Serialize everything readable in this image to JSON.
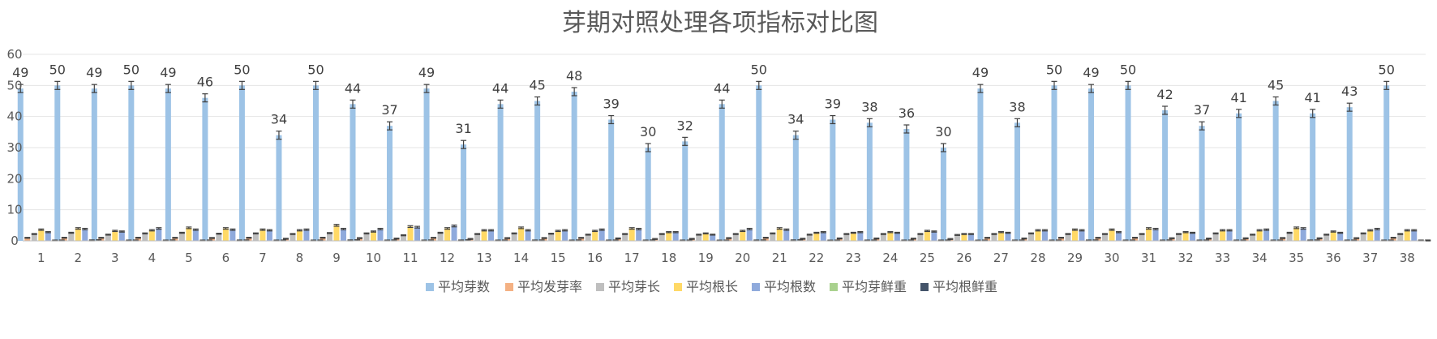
{
  "chart_data": {
    "type": "bar",
    "title": "芽期对照处理各项指标对比图",
    "xlabel": "",
    "ylabel": "",
    "ylim": [
      0,
      60
    ],
    "yticks": [
      0,
      10,
      20,
      30,
      40,
      50,
      60
    ],
    "grid": true,
    "legend_position": "bottom",
    "categories": [
      "1",
      "2",
      "3",
      "4",
      "5",
      "6",
      "7",
      "8",
      "9",
      "10",
      "11",
      "12",
      "13",
      "14",
      "15",
      "16",
      "17",
      "18",
      "19",
      "20",
      "21",
      "22",
      "23",
      "24",
      "25",
      "26",
      "27",
      "28",
      "29",
      "30",
      "31",
      "32",
      "33",
      "34",
      "35",
      "36",
      "37",
      "38"
    ],
    "series": [
      {
        "name": "平均芽数",
        "color": "#9DC3E6",
        "show_labels": true,
        "values": [
          49,
          50,
          49,
          50,
          49,
          46,
          50,
          34,
          50,
          44,
          37,
          49,
          31,
          44,
          45,
          48,
          39,
          30,
          32,
          44,
          50,
          34,
          39,
          38,
          36,
          30,
          49,
          38,
          50,
          49,
          50,
          42,
          37,
          41,
          45,
          41,
          43,
          50
        ]
      },
      {
        "name": "平均发芽率",
        "color": "#F4B183",
        "show_labels": false,
        "values": [
          0.98,
          1.0,
          0.98,
          1.0,
          0.98,
          0.92,
          1.0,
          0.68,
          1.0,
          0.88,
          0.74,
          0.98,
          0.62,
          0.88,
          0.9,
          0.96,
          0.78,
          0.6,
          0.64,
          0.88,
          1.0,
          0.68,
          0.78,
          0.76,
          0.72,
          0.6,
          0.98,
          0.76,
          1.0,
          0.98,
          1.0,
          0.84,
          0.74,
          0.82,
          0.9,
          0.82,
          0.86,
          1.0
        ]
      },
      {
        "name": "平均芽长",
        "color": "#BFBFBF",
        "show_labels": false,
        "values": [
          2.2,
          2.6,
          2.0,
          2.4,
          2.6,
          2.3,
          2.4,
          2.2,
          2.5,
          2.4,
          1.8,
          2.6,
          2.2,
          2.4,
          2.3,
          2.0,
          2.2,
          2.2,
          2.0,
          2.2,
          2.4,
          2.0,
          2.2,
          2.2,
          2.2,
          1.9,
          2.2,
          2.4,
          2.2,
          2.2,
          2.2,
          2.2,
          2.4,
          2.0,
          2.6,
          2.0,
          2.4,
          2.2
        ]
      },
      {
        "name": "平均根长",
        "color": "#FFD966",
        "show_labels": false,
        "values": [
          3.6,
          4.0,
          3.2,
          3.4,
          4.2,
          4.0,
          3.6,
          3.4,
          5.0,
          3.0,
          4.6,
          4.0,
          3.4,
          4.2,
          3.2,
          3.2,
          4.0,
          2.8,
          2.4,
          3.2,
          4.0,
          2.6,
          2.6,
          2.8,
          3.2,
          2.2,
          2.8,
          3.4,
          3.6,
          3.6,
          4.0,
          2.8,
          3.4,
          3.4,
          4.2,
          3.0,
          3.4,
          3.4
        ]
      },
      {
        "name": "平均根数",
        "color": "#8FAADC",
        "show_labels": false,
        "values": [
          2.8,
          3.8,
          3.0,
          4.0,
          3.6,
          3.6,
          3.4,
          3.6,
          3.8,
          3.8,
          4.4,
          4.8,
          3.4,
          3.4,
          3.4,
          3.6,
          3.8,
          2.8,
          2.0,
          3.8,
          3.6,
          2.8,
          2.8,
          2.6,
          3.0,
          2.2,
          2.6,
          3.4,
          3.4,
          2.8,
          3.8,
          2.6,
          3.4,
          3.6,
          4.0,
          2.6,
          3.8,
          3.4
        ]
      },
      {
        "name": "平均芽鲜重",
        "color": "#A9D18E",
        "show_labels": false,
        "values": [
          0.1,
          0.15,
          0.1,
          0.1,
          0.1,
          0.12,
          0.1,
          0.1,
          0.15,
          0.1,
          0.1,
          0.12,
          0.1,
          0.12,
          0.1,
          0.1,
          0.1,
          0.1,
          0.08,
          0.12,
          0.15,
          0.08,
          0.1,
          0.1,
          0.1,
          0.08,
          0.1,
          0.1,
          0.12,
          0.1,
          0.1,
          0.1,
          0.1,
          0.1,
          0.12,
          0.1,
          0.1,
          0.1
        ]
      },
      {
        "name": "平均根鲜重",
        "color": "#44546A",
        "show_labels": false,
        "values": [
          0.12,
          0.2,
          0.12,
          0.15,
          0.12,
          0.15,
          0.12,
          0.12,
          0.2,
          0.15,
          0.15,
          0.2,
          0.12,
          0.15,
          0.15,
          0.12,
          0.15,
          0.1,
          0.1,
          0.15,
          0.2,
          0.1,
          0.12,
          0.12,
          0.12,
          0.1,
          0.12,
          0.12,
          0.15,
          0.12,
          0.15,
          0.12,
          0.12,
          0.12,
          0.15,
          0.12,
          0.12,
          0.12
        ]
      }
    ]
  }
}
